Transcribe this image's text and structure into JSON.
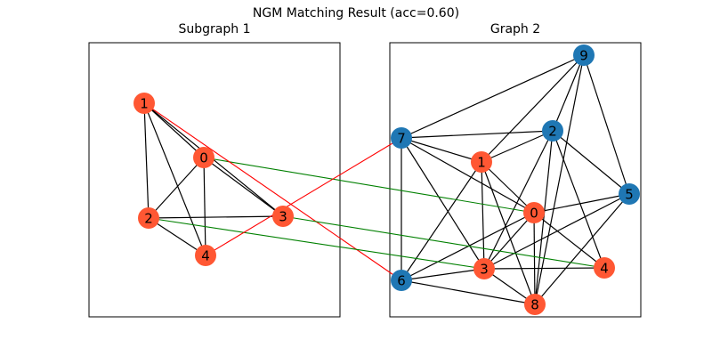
{
  "title": "NGM Matching Result (acc=0.60)",
  "panels": [
    {
      "title": "Subgraph 1",
      "nodes": [
        {
          "label": "0",
          "color": "#ff5733"
        },
        {
          "label": "1",
          "color": "#ff5733"
        },
        {
          "label": "2",
          "color": "#ff5733"
        },
        {
          "label": "3",
          "color": "#ff5733"
        },
        {
          "label": "4",
          "color": "#ff5733"
        }
      ],
      "edges": [
        [
          1,
          0
        ],
        [
          1,
          2
        ],
        [
          1,
          4
        ],
        [
          1,
          3
        ],
        [
          0,
          2
        ],
        [
          0,
          3
        ],
        [
          0,
          4
        ],
        [
          2,
          3
        ],
        [
          2,
          4
        ]
      ]
    },
    {
      "title": "Graph 2",
      "nodes": [
        {
          "label": "0",
          "color": "#ff5733"
        },
        {
          "label": "1",
          "color": "#ff5733"
        },
        {
          "label": "2",
          "color": "#1f77b4"
        },
        {
          "label": "3",
          "color": "#ff5733"
        },
        {
          "label": "4",
          "color": "#ff5733"
        },
        {
          "label": "5",
          "color": "#1f77b4"
        },
        {
          "label": "6",
          "color": "#1f77b4"
        },
        {
          "label": "7",
          "color": "#1f77b4"
        },
        {
          "label": "8",
          "color": "#ff5733"
        },
        {
          "label": "9",
          "color": "#1f77b4"
        }
      ],
      "edges": [
        [
          9,
          7
        ],
        [
          9,
          2
        ],
        [
          9,
          5
        ],
        [
          9,
          1
        ],
        [
          9,
          8
        ],
        [
          2,
          7
        ],
        [
          2,
          1
        ],
        [
          2,
          5
        ],
        [
          2,
          4
        ],
        [
          2,
          3
        ],
        [
          2,
          8
        ],
        [
          7,
          1
        ],
        [
          7,
          0
        ],
        [
          7,
          6
        ],
        [
          7,
          3
        ],
        [
          1,
          0
        ],
        [
          1,
          3
        ],
        [
          1,
          6
        ],
        [
          1,
          8
        ],
        [
          0,
          6
        ],
        [
          0,
          3
        ],
        [
          0,
          4
        ],
        [
          0,
          8
        ],
        [
          5,
          3
        ],
        [
          5,
          8
        ],
        [
          3,
          6
        ],
        [
          3,
          4
        ],
        [
          3,
          8
        ],
        [
          6,
          8
        ],
        [
          0,
          5
        ]
      ]
    }
  ],
  "matches": [
    {
      "source": 0,
      "target": 0,
      "color": "green"
    },
    {
      "source": 1,
      "target": 6,
      "color": "red"
    },
    {
      "source": 2,
      "target": 3,
      "color": "green"
    },
    {
      "source": 3,
      "target": 4,
      "color": "green"
    },
    {
      "source": 4,
      "target": 7,
      "color": "red"
    }
  ]
}
